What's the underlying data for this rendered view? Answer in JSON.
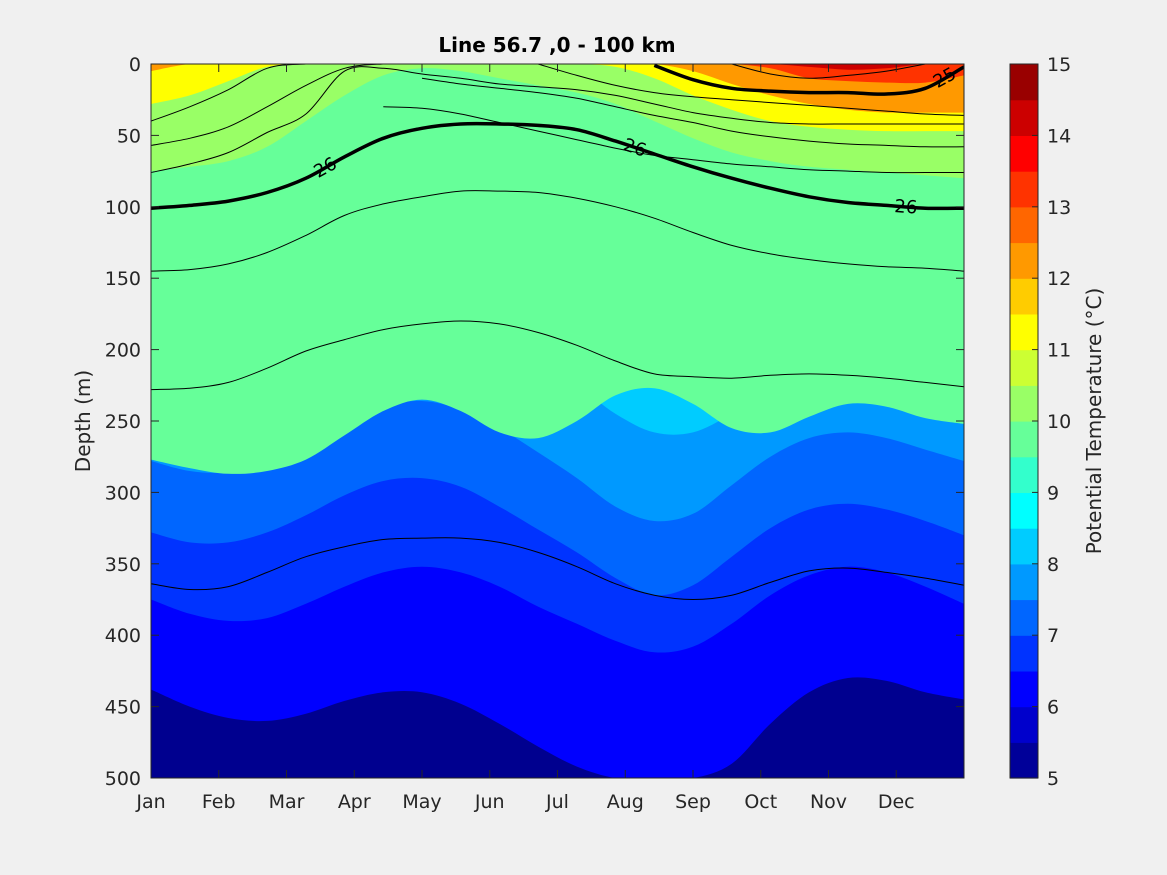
{
  "chart_data": {
    "type": "heatmap",
    "title": "Line 56.7 ,0 - 100 km",
    "xlabel": "",
    "ylabel": "Depth (m)",
    "colorbar_label": "Potential Temperature (°C)",
    "x_ticks": [
      "Jan",
      "Feb",
      "Mar",
      "Apr",
      "May",
      "Jun",
      "Jul",
      "Aug",
      "Sep",
      "Oct",
      "Nov",
      "Dec"
    ],
    "y_ticks": [
      0,
      50,
      100,
      150,
      200,
      250,
      300,
      350,
      400,
      450,
      500
    ],
    "ylim": [
      0,
      500
    ],
    "y_reversed": true,
    "color_ticks": [
      5,
      6,
      7,
      8,
      9,
      10,
      11,
      12,
      13,
      14,
      15
    ],
    "color_range": [
      5,
      15
    ],
    "color_step": 0.5,
    "colormap": "jet",
    "temperature_isotherms": [
      {
        "level": 9.5,
        "depths": [
          277,
          283,
          287,
          285,
          277,
          260,
          243,
          235,
          243,
          258,
          262,
          250,
          232,
          227,
          238,
          255,
          258,
          247,
          238,
          240,
          248,
          252
        ]
      },
      {
        "level": 9.0,
        "depths": [
          192,
          195,
          197,
          192,
          178,
          158,
          140,
          127,
          125,
          135,
          150,
          162,
          170,
          182,
          195,
          205,
          210,
          202,
          190,
          185,
          188,
          195
        ]
      },
      {
        "level": 8.5,
        "depths": [
          128,
          130,
          132,
          128,
          118,
          105,
          98,
          95,
          100,
          108,
          118,
          125,
          130,
          135,
          140,
          142,
          142,
          140,
          136,
          133,
          133,
          137
        ]
      },
      {
        "level": 10.0,
        "depths": [
          75,
          72,
          68,
          58,
          40,
          22,
          8,
          3,
          5,
          10,
          15,
          20,
          28,
          40,
          52,
          62,
          68,
          72,
          74,
          76,
          78,
          80
        ]
      },
      {
        "level": 11.0,
        "depths": [
          28,
          22,
          12,
          2,
          0,
          0,
          0,
          0,
          0,
          0,
          0,
          0,
          2,
          10,
          22,
          32,
          40,
          44,
          46,
          47,
          47,
          47
        ]
      },
      {
        "level": 12.0,
        "depths": [
          5,
          0,
          0,
          0,
          0,
          0,
          0,
          0,
          0,
          0,
          0,
          0,
          0,
          0,
          5,
          14,
          22,
          28,
          32,
          34,
          34,
          34
        ]
      },
      {
        "level": 13.0,
        "depths": [
          0,
          0,
          0,
          0,
          0,
          0,
          0,
          0,
          0,
          0,
          0,
          0,
          0,
          0,
          0,
          0,
          3,
          10,
          12,
          13,
          13,
          8
        ]
      },
      {
        "level": 14.0,
        "depths": [
          0,
          0,
          0,
          0,
          0,
          0,
          0,
          0,
          0,
          0,
          0,
          0,
          0,
          0,
          0,
          0,
          0,
          2,
          4,
          3,
          0,
          0
        ]
      },
      {
        "level": 8.0,
        "depths": [
          228,
          226,
          222,
          212,
          198,
          185,
          176,
          175,
          180,
          192,
          210,
          225,
          245,
          258,
          258,
          245,
          228,
          218,
          212,
          212,
          218,
          225
        ]
      },
      {
        "level": 7.5,
        "depths": [
          278,
          285,
          286,
          280,
          268,
          252,
          240,
          236,
          242,
          255,
          272,
          290,
          310,
          320,
          315,
          295,
          275,
          262,
          258,
          262,
          270,
          278
        ]
      },
      {
        "level": 7.0,
        "depths": [
          328,
          335,
          335,
          328,
          316,
          302,
          292,
          290,
          296,
          310,
          326,
          342,
          360,
          372,
          365,
          345,
          325,
          312,
          308,
          312,
          320,
          330
        ]
      },
      {
        "level": 6.5,
        "depths": [
          375,
          385,
          390,
          388,
          378,
          366,
          356,
          352,
          356,
          366,
          380,
          392,
          404,
          412,
          408,
          392,
          372,
          358,
          352,
          356,
          366,
          378
        ]
      },
      {
        "level": 6.0,
        "depths": [
          438,
          450,
          458,
          460,
          455,
          446,
          440,
          440,
          448,
          462,
          478,
          492,
          500,
          500,
          500,
          490,
          462,
          440,
          430,
          432,
          440,
          445
        ]
      }
    ],
    "density_contours": [
      {
        "depths": [
          40,
          30,
          18,
          3,
          0,
          0,
          0,
          0,
          0,
          0,
          0,
          0,
          0,
          0,
          0,
          0,
          0,
          0,
          0,
          0,
          0,
          0
        ],
        "label": ""
      },
      {
        "depths": [
          57,
          52,
          44,
          30,
          15,
          3,
          0,
          0,
          0,
          0,
          0,
          0,
          0,
          0,
          0,
          0,
          0,
          0,
          0,
          0,
          0,
          0
        ],
        "label": ""
      },
      {
        "depths": [
          76,
          70,
          62,
          48,
          35,
          5,
          3,
          7,
          10,
          14,
          16,
          18,
          22,
          28,
          34,
          38,
          41,
          42,
          42,
          42,
          42,
          42
        ],
        "label": ""
      },
      {
        "depths": [
          101,
          99,
          96,
          90,
          80,
          65,
          52,
          45,
          42,
          42,
          43,
          46,
          54,
          63,
          72,
          80,
          87,
          93,
          97,
          99,
          101,
          101
        ],
        "label": "26",
        "bold": true
      },
      {
        "depths": [
          145,
          144,
          140,
          132,
          120,
          106,
          98,
          93,
          89,
          89,
          90,
          94,
          100,
          108,
          118,
          127,
          133,
          137,
          140,
          142,
          143,
          145
        ],
        "label": ""
      },
      {
        "depths": [
          228,
          227,
          223,
          213,
          201,
          193,
          186,
          182,
          180,
          182,
          188,
          197,
          208,
          217,
          219,
          220,
          218,
          217,
          218,
          220,
          223,
          226
        ],
        "label": ""
      },
      {
        "depths": [
          364,
          368,
          366,
          356,
          345,
          338,
          333,
          332,
          332,
          335,
          342,
          352,
          364,
          372,
          375,
          372,
          363,
          355,
          353,
          356,
          360,
          365
        ],
        "label": ""
      },
      {
        "depths": [
          null,
          null,
          null,
          null,
          null,
          null,
          null,
          null,
          null,
          null,
          null,
          null,
          null,
          1,
          11,
          17,
          19,
          20,
          20,
          21,
          17,
          2
        ],
        "label": "25",
        "bold": true
      },
      {
        "depths": [
          null,
          null,
          null,
          null,
          null,
          null,
          null,
          null,
          null,
          null,
          null,
          null,
          null,
          null,
          null,
          0,
          7,
          10,
          8,
          5,
          0,
          null
        ],
        "label": ""
      },
      {
        "depths": [
          null,
          null,
          null,
          null,
          null,
          null,
          null,
          null,
          null,
          null,
          0,
          8,
          15,
          20,
          23,
          25,
          27,
          29,
          31,
          33,
          35,
          36
        ],
        "label": ""
      },
      {
        "depths": [
          null,
          null,
          null,
          null,
          null,
          null,
          null,
          10,
          14,
          17,
          20,
          24,
          30,
          36,
          41,
          47,
          51,
          54,
          56,
          57,
          58,
          58
        ],
        "label": ""
      },
      {
        "depths": [
          null,
          null,
          null,
          null,
          null,
          null,
          30,
          31,
          35,
          41,
          47,
          53,
          59,
          64,
          67,
          70,
          72,
          74,
          75,
          76,
          76,
          76
        ],
        "label": ""
      }
    ]
  }
}
